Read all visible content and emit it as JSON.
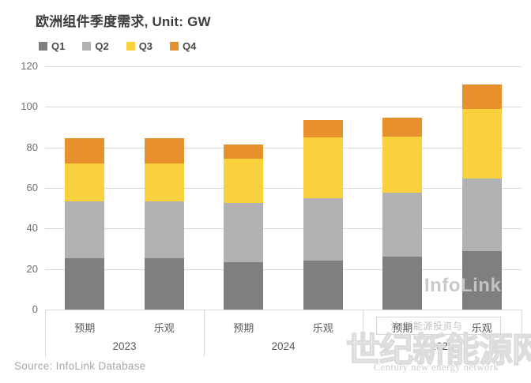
{
  "title": "欧洲组件季度需求, Unit: GW",
  "legend": [
    {
      "label": "Q1",
      "color": "#7f7f82"
    },
    {
      "label": "Q2",
      "color": "#b2b2b4"
    },
    {
      "label": "Q3",
      "color": "#f8d13c"
    },
    {
      "label": "Q4",
      "color": "#e8912c"
    }
  ],
  "chart_data": {
    "type": "bar",
    "stacked": true,
    "title": "欧洲组件季度需求, Unit: GW",
    "unit": "GW",
    "ylim": [
      0,
      120
    ],
    "yticks": [
      0,
      20,
      40,
      60,
      80,
      100,
      120
    ],
    "grid": true,
    "legend_position": "top-left",
    "groups": [
      {
        "year": "2023",
        "scenarios": [
          "预期",
          "乐观"
        ]
      },
      {
        "year": "2024",
        "scenarios": [
          "预期",
          "乐观"
        ]
      },
      {
        "year": "2025",
        "scenarios": [
          "预期",
          "乐观"
        ]
      }
    ],
    "categories": [
      "2023-预期",
      "2023-乐观",
      "2024-预期",
      "2024-乐观",
      "2025-预期",
      "2025-乐观"
    ],
    "series": [
      {
        "name": "Q1",
        "color": "#7f7f82",
        "values": [
          25.5,
          25.5,
          23.5,
          24.0,
          26.0,
          29.0
        ]
      },
      {
        "name": "Q2",
        "color": "#b2b2b4",
        "values": [
          28.0,
          28.0,
          29.0,
          31.0,
          31.5,
          35.5
        ]
      },
      {
        "name": "Q3",
        "color": "#f8d13c",
        "values": [
          18.5,
          18.5,
          22.0,
          30.0,
          28.0,
          34.5
        ]
      },
      {
        "name": "Q4",
        "color": "#e8912c",
        "values": [
          12.5,
          12.5,
          7.0,
          8.5,
          9.0,
          12.0
        ]
      }
    ],
    "totals": [
      84.5,
      84.5,
      81.5,
      93.5,
      94.5,
      111.0
    ]
  },
  "source": "Source: InfoLink Database",
  "watermarks": {
    "infolink": "InfoLink",
    "site_cn": "世纪新能源网",
    "site_en": "Century new energy network",
    "note": "注:新能源投资与"
  }
}
